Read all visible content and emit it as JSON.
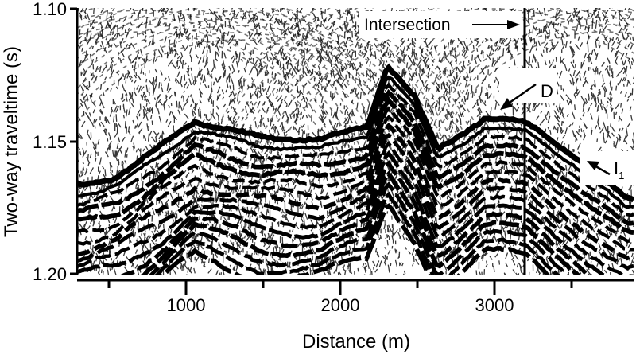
{
  "figure": {
    "ylabel": "Two-way traveltime (s)",
    "xlabel": "Distance (m)",
    "y_ticks": [
      "1.10",
      "1.15",
      "1.20"
    ],
    "x_ticks": [
      "1000",
      "2000",
      "3000"
    ],
    "annotations": {
      "intersection": "Intersection",
      "d_label": "D",
      "i_label": "I",
      "i_subscript": "1"
    }
  },
  "chart_data": {
    "type": "seismic-section",
    "xlabel": "Distance (m)",
    "ylabel": "Two-way traveltime (s)",
    "x_range_m": [
      350,
      3900
    ],
    "y_range_s": [
      1.1,
      1.2
    ],
    "y_ticks": [
      1.1,
      1.15,
      1.2
    ],
    "x_ticks": [
      1000,
      2000,
      3000
    ],
    "intersection_distance_m": 3220,
    "horizon_profile": {
      "x_m": [
        380,
        600,
        900,
        1100,
        1500,
        1900,
        2200,
        2330,
        2500,
        2650,
        2950,
        3220,
        3500,
        3850
      ],
      "t_s": [
        1.165,
        1.162,
        1.15,
        1.141,
        1.147,
        1.148,
        1.143,
        1.12,
        1.132,
        1.152,
        1.14,
        1.142,
        1.153,
        1.17
      ]
    }
  }
}
